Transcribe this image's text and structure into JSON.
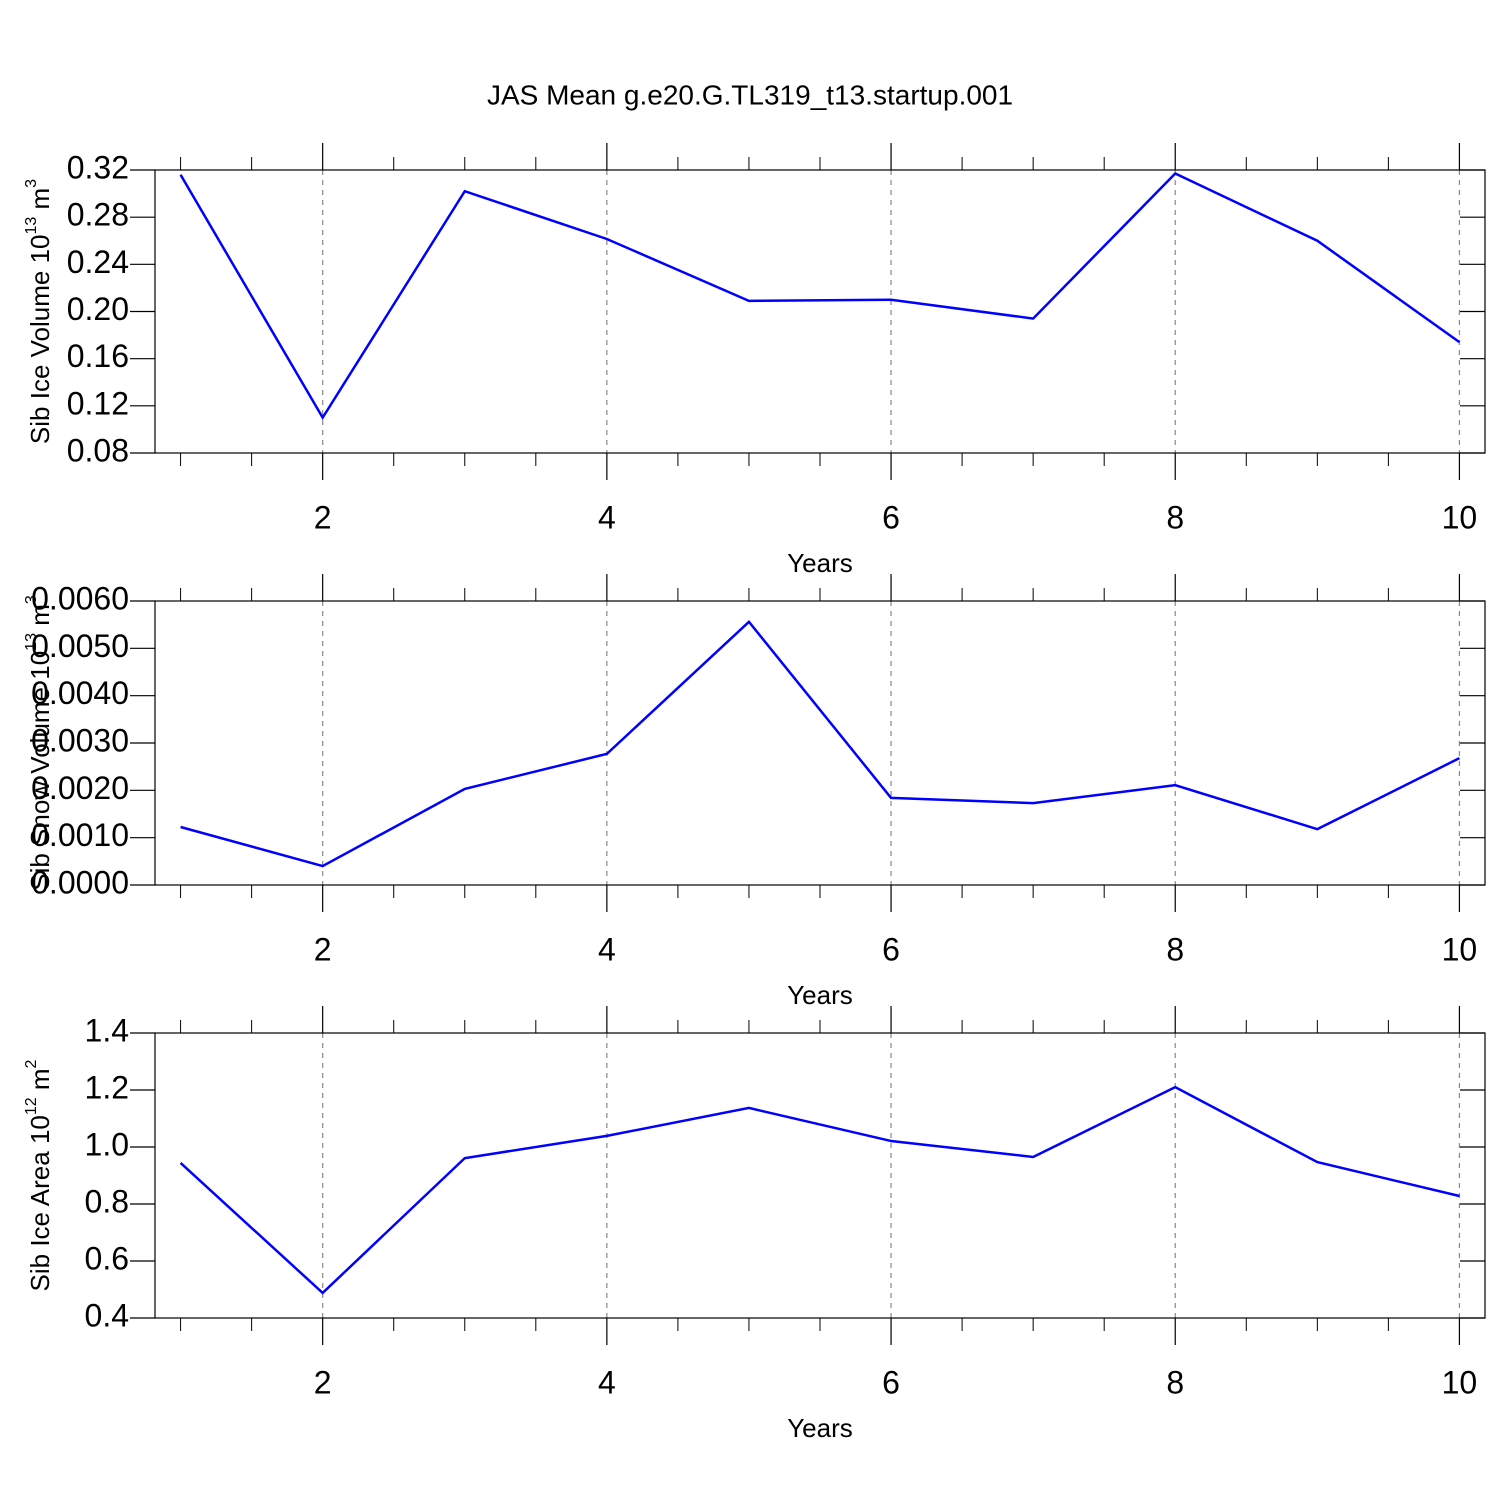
{
  "title": "JAS Mean g.e20.G.TL319_t13.startup.001",
  "chart_data": [
    {
      "type": "line",
      "xlabel": "Years",
      "ylabel_parts": [
        "Sib Ice Volume 10",
        "13",
        " m",
        "3"
      ],
      "x": [
        1,
        2,
        3,
        4,
        5,
        6,
        7,
        8,
        9,
        10
      ],
      "series": [
        {
          "color": "#0000ff",
          "values": [
            0.316,
            0.11,
            0.302,
            0.2615,
            0.209,
            0.21,
            0.194,
            0.317,
            0.26,
            0.174
          ]
        }
      ],
      "xlim": [
        0.82,
        10.18
      ],
      "xticks": [
        2,
        4,
        6,
        8,
        10
      ],
      "xminorticks": [
        1,
        1.5,
        2.5,
        3,
        3.5,
        4.5,
        5,
        5.5,
        6.5,
        7,
        7.5,
        8.5,
        9,
        9.5
      ],
      "ylim": [
        0.08,
        0.32
      ],
      "yticks": [
        0.08,
        0.12,
        0.16,
        {
          "value": 0.2,
          "label": "0.20"
        },
        0.24,
        0.28,
        0.32
      ],
      "grid": true
    },
    {
      "type": "line",
      "xlabel": "Years",
      "ylabel_parts": [
        "Sib Snow Volume 10",
        "13",
        " m",
        "3"
      ],
      "x": [
        1,
        2,
        3,
        4,
        5,
        6,
        7,
        8,
        9,
        10
      ],
      "series": [
        {
          "color": "#0000ff",
          "values": [
            0.001225,
            0.0004,
            0.00203,
            0.00277,
            0.00556,
            0.00184,
            0.00173,
            0.00211,
            0.00118,
            0.00268
          ]
        }
      ],
      "xlim": [
        0.82,
        10.18
      ],
      "xticks": [
        2,
        4,
        6,
        8,
        10
      ],
      "xminorticks": [
        1,
        1.5,
        2.5,
        3,
        3.5,
        4.5,
        5,
        5.5,
        6.5,
        7,
        7.5,
        8.5,
        9,
        9.5
      ],
      "ylim": [
        0,
        0.006
      ],
      "yticks": [
        {
          "value": 0,
          "label": "0.0000"
        },
        {
          "value": 0.001,
          "label": "0.0010"
        },
        {
          "value": 0.002,
          "label": "0.0020"
        },
        {
          "value": 0.003,
          "label": "0.0030"
        },
        {
          "value": 0.004,
          "label": "0.0040"
        },
        {
          "value": 0.005,
          "label": "0.0050"
        },
        {
          "value": 0.006,
          "label": "0.0060"
        }
      ],
      "grid": true
    },
    {
      "type": "line",
      "xlabel": "Years",
      "ylabel_parts": [
        "Sib Ice Area 10",
        "12",
        " m",
        "2"
      ],
      "x": [
        1,
        2,
        3,
        4,
        5,
        6,
        7,
        8,
        9,
        10
      ],
      "series": [
        {
          "color": "#0000ff",
          "values": [
            0.944,
            0.488,
            0.961,
            1.039,
            1.137,
            1.021,
            0.965,
            1.21,
            0.947,
            0.828
          ]
        }
      ],
      "xlim": [
        0.82,
        10.18
      ],
      "xticks": [
        2,
        4,
        6,
        8,
        10
      ],
      "xminorticks": [
        1,
        1.5,
        2.5,
        3,
        3.5,
        4.5,
        5,
        5.5,
        6.5,
        7,
        7.5,
        8.5,
        9,
        9.5
      ],
      "ylim": [
        0.4,
        1.4
      ],
      "yticks": [
        0.4,
        0.6,
        0.8,
        {
          "value": 1,
          "label": "1.0"
        },
        1.2,
        1.4
      ],
      "grid": true
    }
  ]
}
